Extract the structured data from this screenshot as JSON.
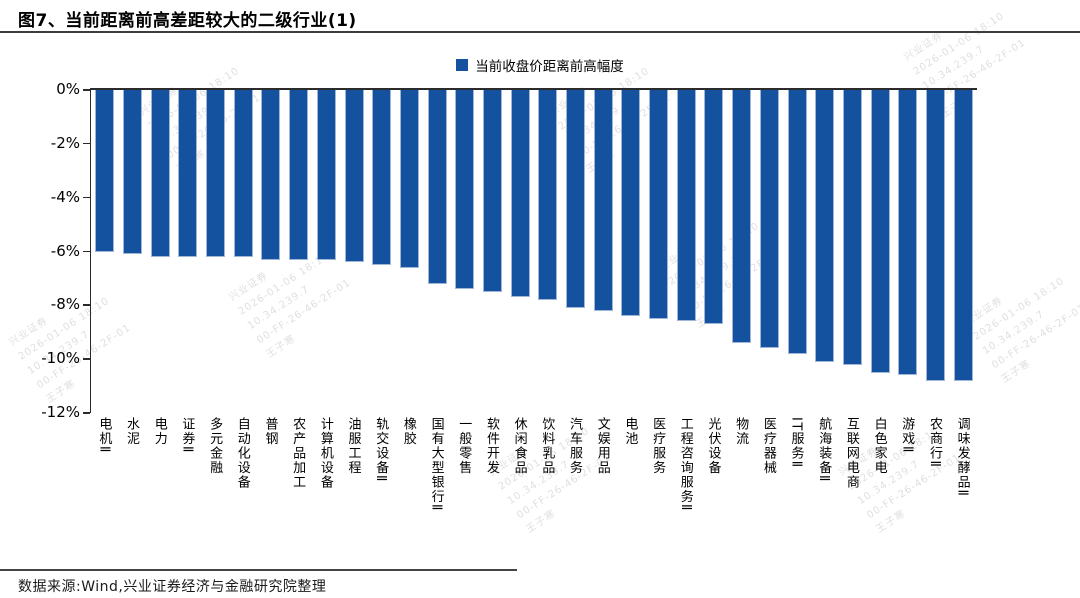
{
  "title": "图7、当前距离前高差距较大的二级行业(1)",
  "legend": {
    "label": "当前收盘价距离前高幅度"
  },
  "footer": {
    "source": "数据来源:Wind,兴业证券经济与金融研究院整理"
  },
  "colors": {
    "bar": "#14519E",
    "bar_edge": "#9FB6D8",
    "axis": "#2B2B2B"
  },
  "watermark": {
    "lines": [
      "兴业证券",
      "2026-01-06 18:10",
      "10.34.239.7",
      "00-FF-26-46-2F-01",
      "王子寒"
    ]
  },
  "chart_data": {
    "type": "bar",
    "title": "图7、当前距离前高差距较大的二级行业(1)",
    "legend_entries": [
      "当前收盘价距离前高幅度"
    ],
    "legend_position": "top-center",
    "grid": false,
    "bar_color": "#14519E",
    "ylim": [
      -12,
      0
    ],
    "yticks": [
      0,
      -2,
      -4,
      -6,
      -8,
      -10,
      -12
    ],
    "ytick_labels": [
      "0%",
      "-2%",
      "-4%",
      "-6%",
      "-8%",
      "-10%",
      "-12%"
    ],
    "xlabel": "",
    "ylabel": "",
    "categories": [
      "电机Ⅱ",
      "水泥",
      "电力",
      "证券Ⅱ",
      "多元金融",
      "自动化设备",
      "普钢",
      "农产品加工",
      "计算机设备",
      "油服工程",
      "轨交设备Ⅱ",
      "橡胶",
      "国有大型银行Ⅱ",
      "一般零售",
      "软件开发",
      "休闲食品",
      "饮料乳品",
      "汽车服务",
      "文娱用品",
      "电池",
      "医疗服务",
      "工程咨询服务Ⅱ",
      "光伏设备",
      "物流",
      "医疗器械",
      "IT服务Ⅱ",
      "航海装备Ⅱ",
      "互联网电商",
      "白色家电",
      "游戏Ⅱ",
      "农商行Ⅱ",
      "调味发酵品Ⅱ"
    ],
    "values": [
      -6.0,
      -6.1,
      -6.2,
      -6.2,
      -6.2,
      -6.2,
      -6.3,
      -6.3,
      -6.3,
      -6.4,
      -6.5,
      -6.6,
      -7.2,
      -7.4,
      -7.5,
      -7.7,
      -7.8,
      -8.1,
      -8.2,
      -8.4,
      -8.5,
      -8.6,
      -8.7,
      -9.4,
      -9.6,
      -9.8,
      -10.1,
      -10.2,
      -10.5,
      -10.6,
      -10.8,
      -10.8
    ]
  }
}
